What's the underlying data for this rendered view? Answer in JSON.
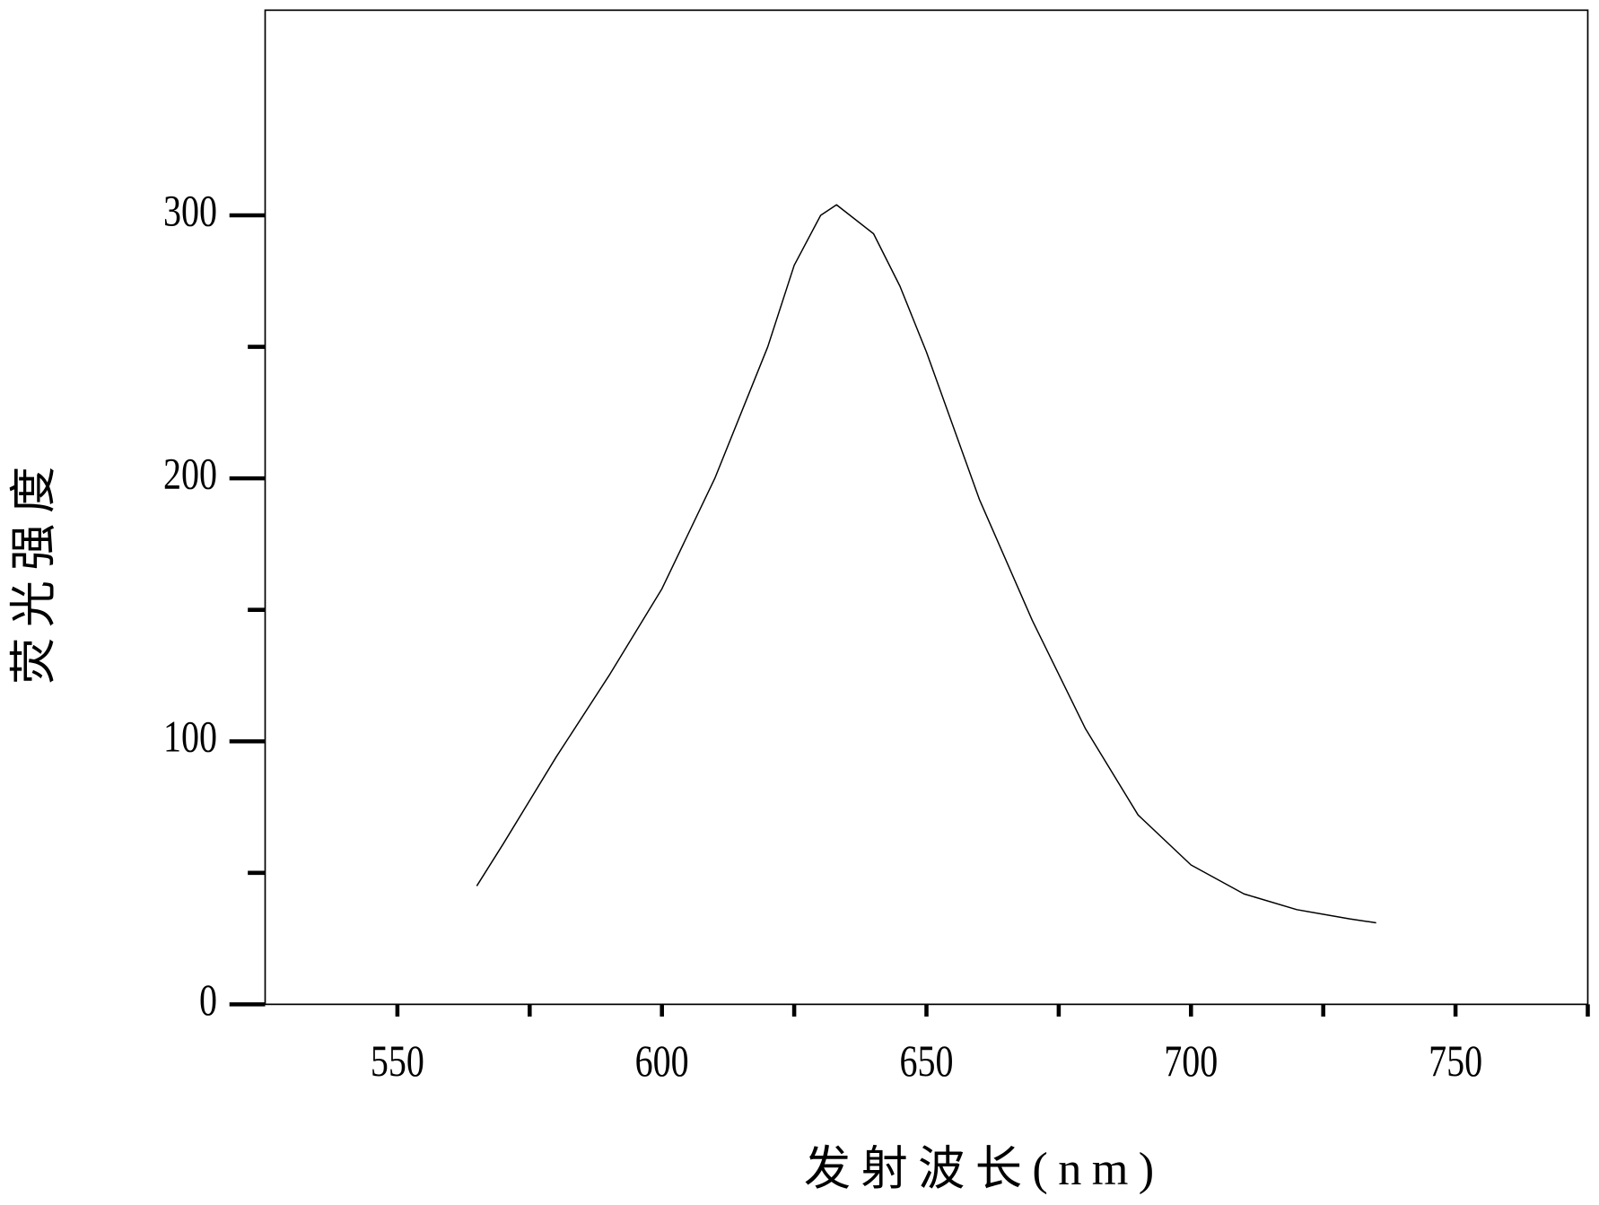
{
  "chart_data": {
    "type": "line",
    "x_label": "发射波长(nm)",
    "y_label": "荧光强度",
    "x": [
      565,
      570,
      580,
      590,
      600,
      610,
      620,
      625,
      630,
      633,
      640,
      645,
      650,
      660,
      670,
      680,
      690,
      700,
      710,
      720,
      730,
      735
    ],
    "values": [
      45,
      61,
      94,
      125,
      158,
      200,
      250,
      281,
      300,
      304,
      293,
      273,
      248,
      192,
      146,
      105,
      72,
      53,
      42,
      36,
      32.5,
      31
    ],
    "color": "#000000",
    "xlim": [
      525,
      775
    ],
    "xticks": [
      550,
      600,
      650,
      700,
      750
    ],
    "xticks_minor": [
      575,
      625,
      675,
      725,
      775
    ],
    "ylim": [
      0,
      378
    ],
    "yticks": [
      0,
      100,
      200,
      300
    ],
    "yticks_minor": [
      50,
      150,
      250
    ],
    "grid": false
  }
}
